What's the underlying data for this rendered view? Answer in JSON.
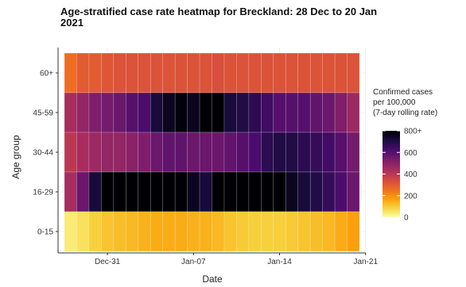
{
  "chart_data": {
    "type": "heatmap",
    "title": "Age-stratified case rate heatmap for Breckland: 28 Dec to 20 Jan 2021",
    "xlabel": "Date",
    "ylabel": "Age group",
    "x_ticks": [
      "Dec-31",
      "Jan-07",
      "Jan-14",
      "Jan-21"
    ],
    "dates": [
      "2020-12-28",
      "2020-12-29",
      "2020-12-30",
      "2020-12-31",
      "2021-01-01",
      "2021-01-02",
      "2021-01-03",
      "2021-01-04",
      "2021-01-05",
      "2021-01-06",
      "2021-01-07",
      "2021-01-08",
      "2021-01-09",
      "2021-01-10",
      "2021-01-11",
      "2021-01-12",
      "2021-01-13",
      "2021-01-14",
      "2021-01-15",
      "2021-01-16",
      "2021-01-17",
      "2021-01-18",
      "2021-01-19",
      "2021-01-20"
    ],
    "rows": [
      "60+",
      "45-59",
      "30-44",
      "16-29",
      "0-15"
    ],
    "values": [
      [
        260,
        300,
        300,
        310,
        320,
        320,
        320,
        320,
        320,
        320,
        320,
        320,
        330,
        320,
        320,
        320,
        320,
        320,
        320,
        320,
        320,
        320,
        320,
        320
      ],
      [
        440,
        480,
        520,
        540,
        560,
        600,
        620,
        720,
        760,
        790,
        760,
        800,
        800,
        720,
        700,
        680,
        640,
        600,
        600,
        600,
        580,
        560,
        520,
        460
      ],
      [
        400,
        440,
        460,
        480,
        480,
        500,
        520,
        560,
        580,
        580,
        560,
        560,
        560,
        580,
        600,
        620,
        680,
        700,
        700,
        680,
        660,
        640,
        600,
        540
      ],
      [
        440,
        560,
        720,
        800,
        800,
        800,
        800,
        800,
        800,
        800,
        760,
        720,
        800,
        800,
        800,
        800,
        800,
        800,
        760,
        720,
        700,
        660,
        620,
        560
      ],
      [
        40,
        60,
        90,
        110,
        120,
        130,
        140,
        150,
        150,
        150,
        140,
        140,
        130,
        110,
        100,
        90,
        90,
        90,
        100,
        110,
        120,
        130,
        150,
        170
      ]
    ],
    "legend": {
      "title_lines": [
        "Confirmed cases",
        "per 100,000",
        "(7-day rolling rate)"
      ],
      "ticks": [
        "800+",
        "600",
        "400",
        "200",
        "0"
      ],
      "range": [
        0,
        800
      ]
    },
    "colormap": [
      "#fcffa4",
      "#f7d13d",
      "#fb9b06",
      "#ed6925",
      "#cf4446",
      "#a52c60",
      "#781c6d",
      "#4a0c6b",
      "#1b0c41",
      "#000004"
    ],
    "grid": true
  }
}
